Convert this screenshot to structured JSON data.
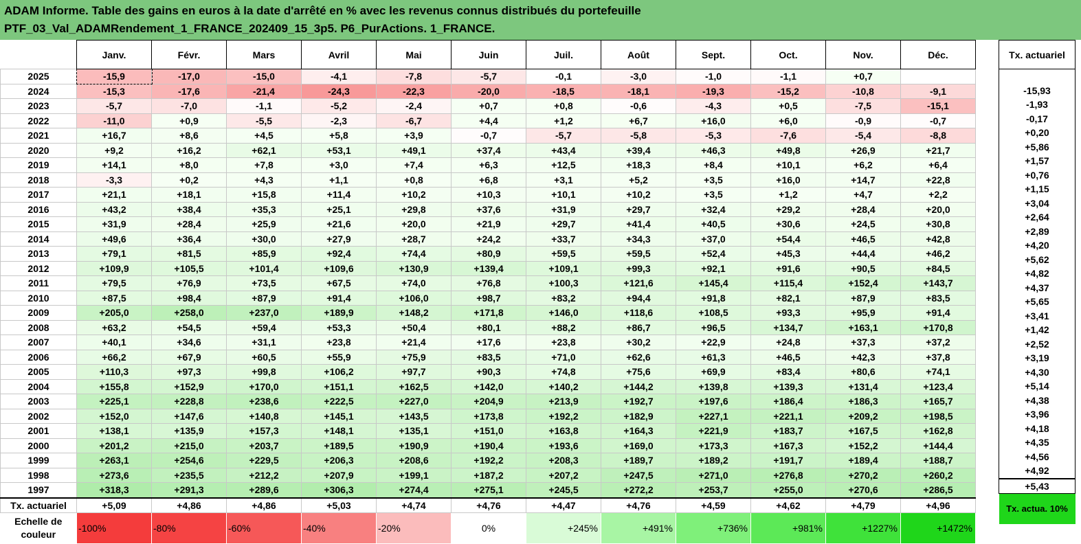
{
  "title": {
    "line1": "ADAM Informe. Table des gains en euros à la date d'arrêté en % avec les revenus connus distribués du portefeuille",
    "line2": "PTF_03_Val_ADAMRendement_1_FRANCE_202409_15_3p5. P6_PurActions. 1_FRANCE."
  },
  "months": [
    "Janv.",
    "Févr.",
    "Mars",
    "Avril",
    "Mai",
    "Juin",
    "Juil.",
    "Août",
    "Sept.",
    "Oct.",
    "Nov.",
    "Déc."
  ],
  "tx_header": "Tx. actuariel",
  "rows": [
    {
      "year": "2025",
      "values": [
        "-15,9",
        "-17,0",
        "-15,0",
        "-4,1",
        "-7,8",
        "-5,7",
        "-0,1",
        "-3,0",
        "-1,0",
        "-1,1",
        "+0,7",
        ""
      ],
      "tx": ""
    },
    {
      "year": "2024",
      "values": [
        "-15,3",
        "-17,6",
        "-21,4",
        "-24,3",
        "-22,3",
        "-20,0",
        "-18,5",
        "-18,1",
        "-19,3",
        "-15,2",
        "-10,8",
        "-9,1"
      ],
      "tx": "-15,93"
    },
    {
      "year": "2023",
      "values": [
        "-5,7",
        "-7,0",
        "-1,1",
        "-5,2",
        "-2,4",
        "+0,7",
        "+0,8",
        "-0,6",
        "-4,3",
        "+0,5",
        "-7,5",
        "-15,1"
      ],
      "tx": "-1,93"
    },
    {
      "year": "2022",
      "values": [
        "-11,0",
        "+0,9",
        "-5,5",
        "-2,3",
        "-6,7",
        "+4,4",
        "+1,2",
        "+6,7",
        "+16,0",
        "+6,0",
        "-0,9",
        "-0,7"
      ],
      "tx": "-0,17"
    },
    {
      "year": "2021",
      "values": [
        "+16,7",
        "+8,6",
        "+4,5",
        "+5,8",
        "+3,9",
        "-0,7",
        "-5,7",
        "-5,8",
        "-5,3",
        "-7,6",
        "-5,4",
        "-8,8"
      ],
      "tx": "+0,20"
    },
    {
      "year": "2020",
      "values": [
        "+9,2",
        "+16,2",
        "+62,1",
        "+53,1",
        "+49,1",
        "+37,4",
        "+43,4",
        "+39,4",
        "+46,3",
        "+49,8",
        "+26,9",
        "+21,7"
      ],
      "tx": "+5,86"
    },
    {
      "year": "2019",
      "values": [
        "+14,1",
        "+8,0",
        "+7,8",
        "+3,0",
        "+7,4",
        "+6,3",
        "+12,5",
        "+18,3",
        "+8,4",
        "+10,1",
        "+6,2",
        "+6,4"
      ],
      "tx": "+1,57"
    },
    {
      "year": "2018",
      "values": [
        "-3,3",
        "+0,2",
        "+4,3",
        "+1,1",
        "+0,8",
        "+6,8",
        "+3,1",
        "+5,2",
        "+3,5",
        "+16,0",
        "+14,7",
        "+22,8"
      ],
      "tx": "+0,76"
    },
    {
      "year": "2017",
      "values": [
        "+21,1",
        "+18,1",
        "+15,8",
        "+11,4",
        "+10,2",
        "+10,3",
        "+10,1",
        "+10,2",
        "+3,5",
        "+1,2",
        "+4,7",
        "+2,2"
      ],
      "tx": "+1,15"
    },
    {
      "year": "2016",
      "values": [
        "+43,2",
        "+38,4",
        "+35,3",
        "+25,1",
        "+29,8",
        "+37,6",
        "+31,9",
        "+29,7",
        "+32,4",
        "+29,2",
        "+28,4",
        "+20,0"
      ],
      "tx": "+3,04"
    },
    {
      "year": "2015",
      "values": [
        "+31,9",
        "+28,4",
        "+25,9",
        "+21,6",
        "+20,0",
        "+21,9",
        "+29,7",
        "+41,4",
        "+40,5",
        "+30,6",
        "+24,5",
        "+30,8"
      ],
      "tx": "+2,64"
    },
    {
      "year": "2014",
      "values": [
        "+49,6",
        "+36,4",
        "+30,0",
        "+27,9",
        "+28,7",
        "+24,2",
        "+33,7",
        "+34,3",
        "+37,0",
        "+54,4",
        "+46,5",
        "+42,8"
      ],
      "tx": "+2,89"
    },
    {
      "year": "2013",
      "values": [
        "+79,1",
        "+81,5",
        "+85,9",
        "+92,4",
        "+74,4",
        "+80,9",
        "+59,5",
        "+59,5",
        "+52,4",
        "+45,3",
        "+44,4",
        "+46,2"
      ],
      "tx": "+4,20"
    },
    {
      "year": "2012",
      "values": [
        "+109,9",
        "+105,5",
        "+101,4",
        "+109,6",
        "+130,9",
        "+139,4",
        "+109,1",
        "+99,3",
        "+92,1",
        "+91,6",
        "+90,5",
        "+84,5"
      ],
      "tx": "+5,62"
    },
    {
      "year": "2011",
      "values": [
        "+79,5",
        "+76,9",
        "+73,5",
        "+67,5",
        "+74,0",
        "+76,8",
        "+100,3",
        "+121,6",
        "+145,4",
        "+115,4",
        "+152,4",
        "+143,7"
      ],
      "tx": "+4,82"
    },
    {
      "year": "2010",
      "values": [
        "+87,5",
        "+98,4",
        "+87,9",
        "+91,4",
        "+106,0",
        "+98,7",
        "+83,2",
        "+94,4",
        "+91,8",
        "+82,1",
        "+87,9",
        "+83,5"
      ],
      "tx": "+4,37"
    },
    {
      "year": "2009",
      "values": [
        "+205,0",
        "+258,0",
        "+237,0",
        "+189,9",
        "+148,2",
        "+171,8",
        "+146,0",
        "+118,6",
        "+108,5",
        "+93,3",
        "+95,9",
        "+91,4"
      ],
      "tx": "+5,65"
    },
    {
      "year": "2008",
      "values": [
        "+63,2",
        "+54,5",
        "+59,4",
        "+53,3",
        "+50,4",
        "+80,1",
        "+88,2",
        "+86,7",
        "+96,5",
        "+134,7",
        "+163,1",
        "+170,8"
      ],
      "tx": "+3,41"
    },
    {
      "year": "2007",
      "values": [
        "+40,1",
        "+34,6",
        "+31,1",
        "+23,8",
        "+21,4",
        "+17,6",
        "+23,8",
        "+30,2",
        "+22,9",
        "+24,8",
        "+37,3",
        "+37,2"
      ],
      "tx": "+1,42"
    },
    {
      "year": "2006",
      "values": [
        "+66,2",
        "+67,9",
        "+60,5",
        "+55,9",
        "+75,9",
        "+83,5",
        "+71,0",
        "+62,6",
        "+61,3",
        "+46,5",
        "+42,3",
        "+37,8"
      ],
      "tx": "+2,52"
    },
    {
      "year": "2005",
      "values": [
        "+110,3",
        "+97,3",
        "+99,8",
        "+106,2",
        "+97,7",
        "+90,3",
        "+74,8",
        "+75,6",
        "+69,9",
        "+83,4",
        "+80,6",
        "+74,1"
      ],
      "tx": "+3,19"
    },
    {
      "year": "2004",
      "values": [
        "+155,8",
        "+152,9",
        "+170,0",
        "+151,1",
        "+162,5",
        "+142,0",
        "+140,2",
        "+144,2",
        "+139,8",
        "+139,3",
        "+131,4",
        "+123,4"
      ],
      "tx": "+4,30"
    },
    {
      "year": "2003",
      "values": [
        "+225,1",
        "+228,8",
        "+238,6",
        "+222,5",
        "+227,0",
        "+204,9",
        "+213,9",
        "+192,7",
        "+197,6",
        "+186,4",
        "+186,3",
        "+165,7"
      ],
      "tx": "+5,14"
    },
    {
      "year": "2002",
      "values": [
        "+152,0",
        "+147,6",
        "+140,8",
        "+145,1",
        "+143,5",
        "+173,8",
        "+192,2",
        "+182,9",
        "+227,1",
        "+221,1",
        "+209,2",
        "+198,5"
      ],
      "tx": "+4,38"
    },
    {
      "year": "2001",
      "values": [
        "+138,1",
        "+135,9",
        "+157,3",
        "+148,1",
        "+135,1",
        "+151,0",
        "+163,8",
        "+164,3",
        "+221,9",
        "+183,7",
        "+167,5",
        "+162,8"
      ],
      "tx": "+3,96"
    },
    {
      "year": "2000",
      "values": [
        "+201,2",
        "+215,0",
        "+203,7",
        "+189,5",
        "+190,9",
        "+190,4",
        "+193,6",
        "+169,0",
        "+173,3",
        "+167,3",
        "+152,2",
        "+144,4"
      ],
      "tx": "+4,18"
    },
    {
      "year": "1999",
      "values": [
        "+263,1",
        "+254,6",
        "+229,5",
        "+206,3",
        "+208,6",
        "+192,2",
        "+208,3",
        "+189,7",
        "+189,2",
        "+191,7",
        "+189,4",
        "+188,7"
      ],
      "tx": "+4,35"
    },
    {
      "year": "1998",
      "values": [
        "+273,6",
        "+235,5",
        "+212,2",
        "+207,9",
        "+199,1",
        "+187,2",
        "+207,2",
        "+247,5",
        "+271,0",
        "+276,8",
        "+270,2",
        "+260,2"
      ],
      "tx": "+4,56"
    },
    {
      "year": "1997",
      "values": [
        "+318,3",
        "+291,3",
        "+289,6",
        "+306,3",
        "+274,4",
        "+275,1",
        "+245,5",
        "+272,2",
        "+253,7",
        "+255,0",
        "+270,6",
        "+286,5"
      ],
      "tx": "+4,92"
    }
  ],
  "avg_row": {
    "label": "Tx. actuariel",
    "values": [
      "+5,09",
      "+4,86",
      "+4,86",
      "+5,03",
      "+4,74",
      "+4,76",
      "+4,47",
      "+4,76",
      "+4,59",
      "+4,62",
      "+4,79",
      "+4,96"
    ],
    "tx": "+5,43"
  },
  "scale": {
    "label": "Echelle de couleur",
    "items": [
      {
        "text": "-100%",
        "color": "#f43c3c",
        "align": "neg"
      },
      {
        "text": "-80%",
        "color": "#f54343",
        "align": "neg"
      },
      {
        "text": "-60%",
        "color": "#f65858",
        "align": "neg"
      },
      {
        "text": "-40%",
        "color": "#f88080",
        "align": "neg"
      },
      {
        "text": "-20%",
        "color": "#fbbcbc",
        "align": "neg"
      },
      {
        "text": "0%",
        "color": "#ffffff",
        "align": "center"
      },
      {
        "text": "+245%",
        "color": "#d9fbd7",
        "align": "pos"
      },
      {
        "text": "+491%",
        "color": "#a8f5a4",
        "align": "pos"
      },
      {
        "text": "+736%",
        "color": "#7ff07a",
        "align": "pos"
      },
      {
        "text": "+981%",
        "color": "#5ce957",
        "align": "pos"
      },
      {
        "text": "+1227%",
        "color": "#3fe23a",
        "align": "pos"
      },
      {
        "text": "+1472%",
        "color": "#1fd61a",
        "align": "pos"
      }
    ],
    "tx_text": "Tx. actua. 10%",
    "tx_color": "#1fd61a"
  },
  "colors": {
    "title_bg": "#7dc77e",
    "negative_max": "#f88080",
    "positive_max": "#a3e29f"
  }
}
